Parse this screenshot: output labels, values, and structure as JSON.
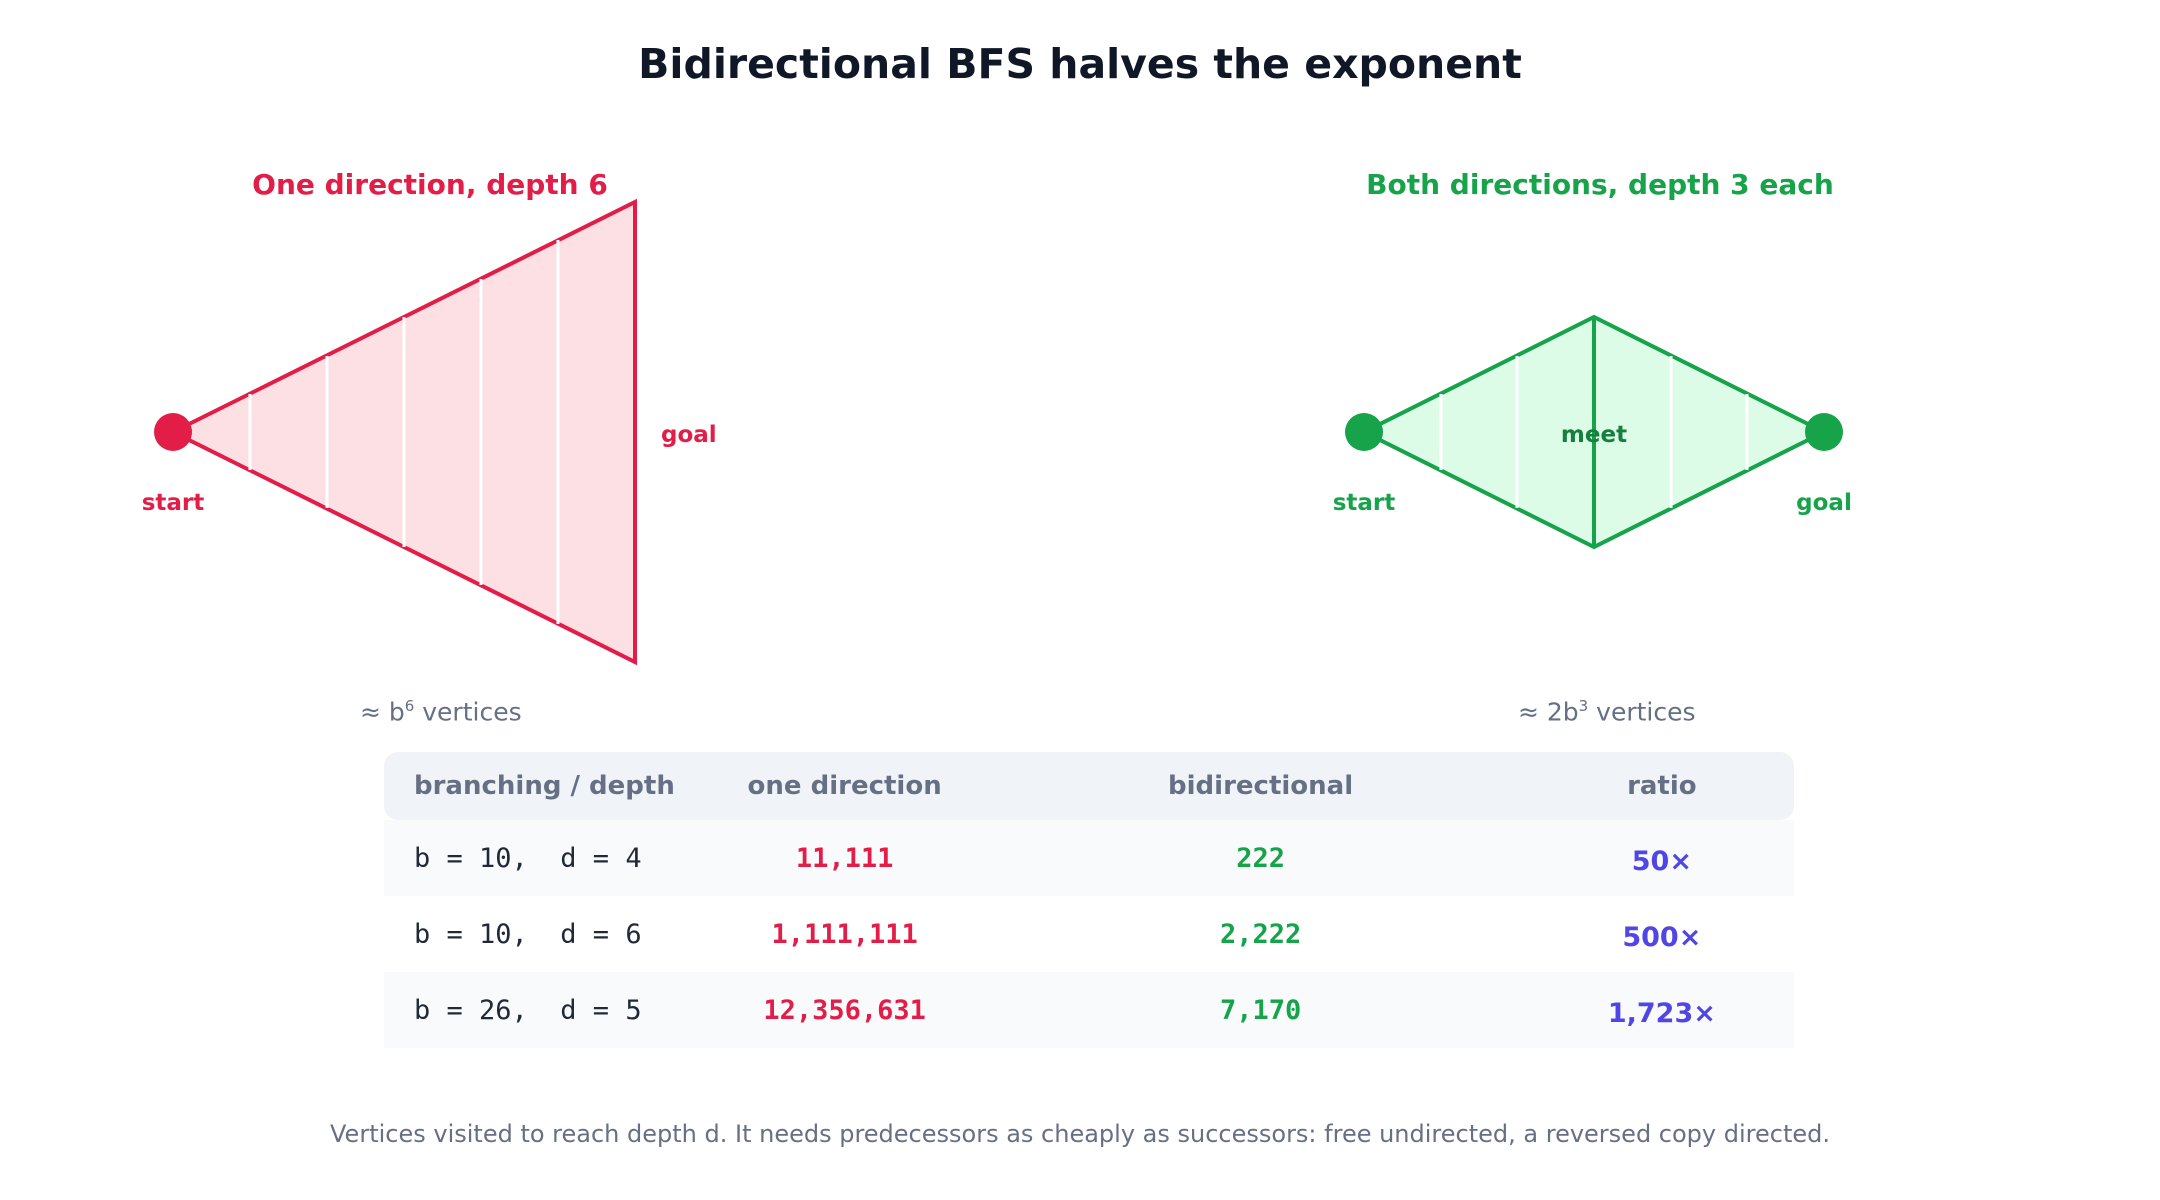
{
  "title": "Bidirectional BFS halves the exponent",
  "left_panel": {
    "title": "One direction, depth 6",
    "start_label": "start",
    "goal_label": "goal",
    "formula_prefix": "≈ b",
    "formula_exp": "6",
    "formula_suffix": " vertices",
    "color": "#e11d48",
    "fill": "#fde0e3"
  },
  "right_panel": {
    "title": "Both directions, depth 3 each",
    "start_label": "start",
    "goal_label": "goal",
    "meet_label": "meet",
    "formula_prefix": "≈ 2b",
    "formula_exp": "3",
    "formula_suffix": " vertices",
    "color": "#16a34a",
    "fill": "#dcfce7"
  },
  "table": {
    "headers": [
      "branching / depth",
      "one direction",
      "bidirectional",
      "ratio"
    ],
    "rows": [
      {
        "params": "b = 10,  d = 4",
        "one": "11,111",
        "bi": "222",
        "ratio": "50×"
      },
      {
        "params": "b = 10,  d = 6",
        "one": "1,111,111",
        "bi": "2,222",
        "ratio": "500×"
      },
      {
        "params": "b = 26,  d = 5",
        "one": "12,356,631",
        "bi": "7,170",
        "ratio": "1,723×"
      }
    ]
  },
  "footnote": "Vertices visited to reach depth d. It needs predecessors as cheaply as successors: free undirected, a reversed copy directed."
}
